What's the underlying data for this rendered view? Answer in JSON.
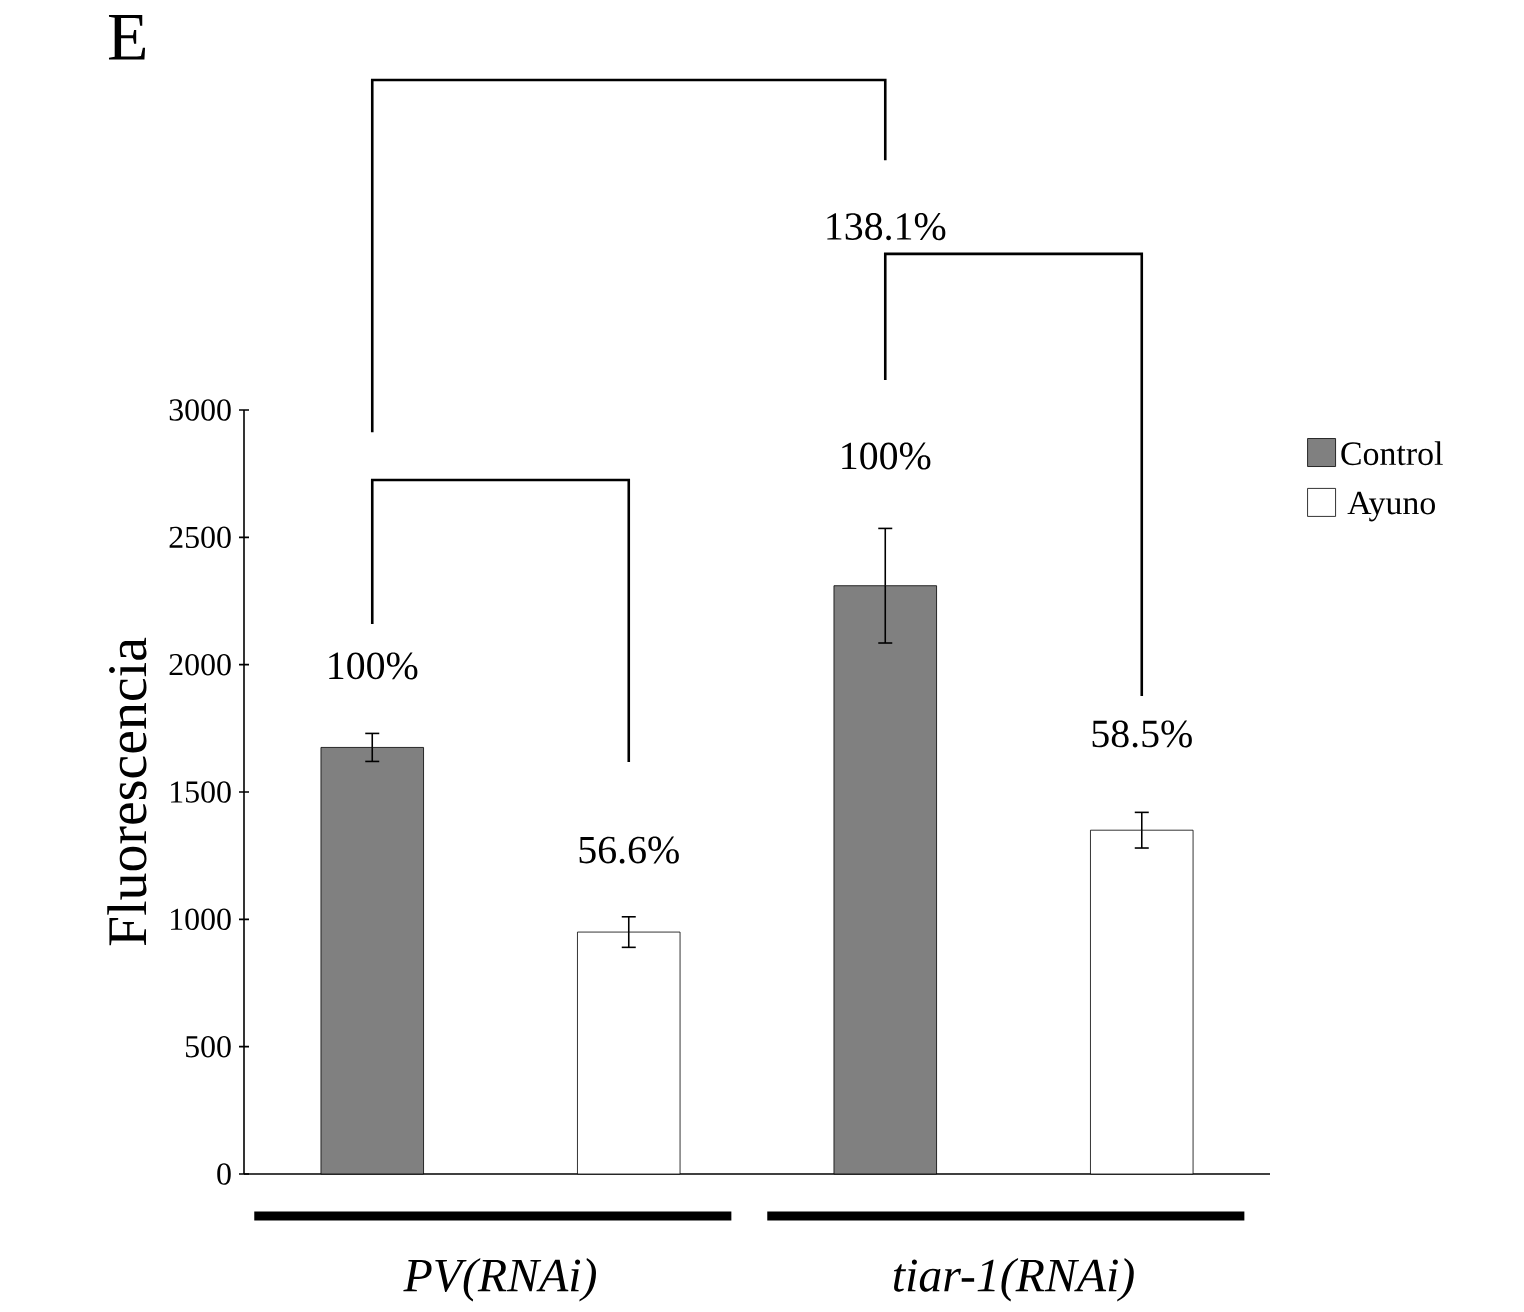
{
  "chart_data": {
    "type": "bar",
    "title": "E",
    "ylabel": "Fluorescencia",
    "categories": [
      "PV(RNAi)",
      "tiar-1(RNAi)"
    ],
    "series": [
      {
        "name": "Control",
        "color": "#808080",
        "values": [
          1675,
          2310
        ],
        "errors": [
          55,
          225
        ]
      },
      {
        "name": "Ayuno",
        "color": "#ffffff",
        "values": [
          950,
          1350
        ],
        "errors": [
          60,
          70
        ]
      }
    ],
    "ylim": [
      0,
      3000
    ],
    "yticks": [
      0,
      500,
      1000,
      1500,
      2000,
      2500,
      3000
    ],
    "legend": "right",
    "grid": false,
    "annotations": [
      "100%",
      "56.6%",
      "100%",
      "58.5%",
      "138.1%"
    ]
  }
}
